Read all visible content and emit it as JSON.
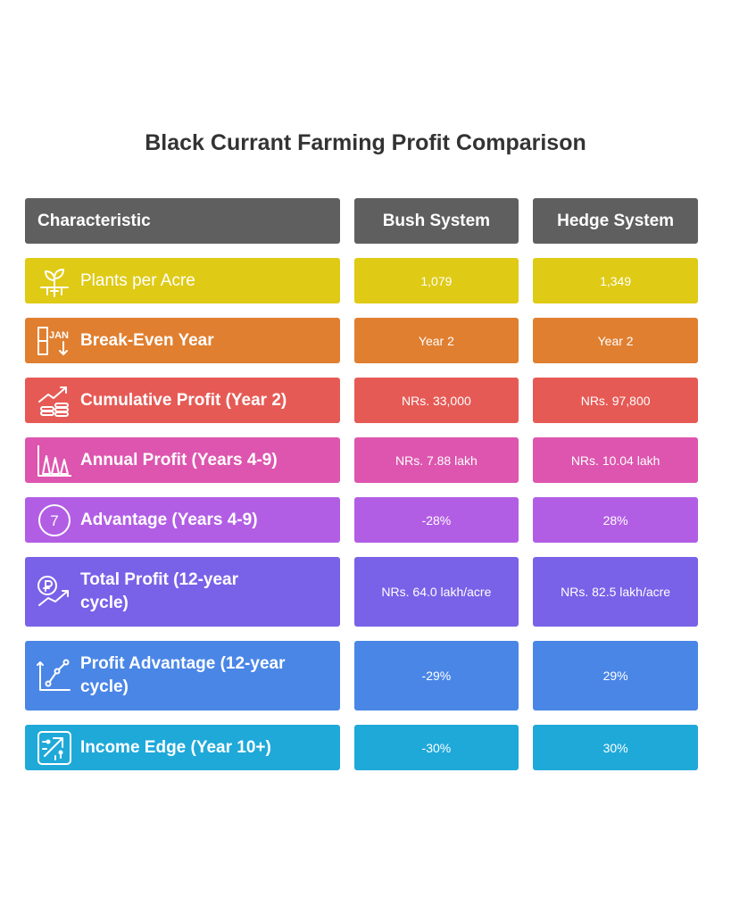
{
  "title": "Black Currant Farming Profit Comparison",
  "headers": {
    "characteristic": "Characteristic",
    "bush": "Bush System",
    "hedge": "Hedge System"
  },
  "rows": [
    {
      "label": "Plants per Acre",
      "bush": "1,079",
      "hedge": "1,349",
      "icon": "sprout-icon",
      "color": "#dfca16"
    },
    {
      "label": "Break-Even Year",
      "bush": "Year 2",
      "hedge": "Year 2",
      "icon": "calendar-jan-icon",
      "color": "#e07f30",
      "icon_text": "JAN"
    },
    {
      "label": "Cumulative Profit (Year 2)",
      "bush": "NRs. 33,000",
      "hedge": "NRs. 97,800",
      "icon": "coins-growth-icon",
      "color": "#e65a55"
    },
    {
      "label": "Annual Profit (Years 4-9)",
      "bush": "NRs. 7.88 lakh",
      "hedge": "NRs. 10.04 lakh",
      "icon": "trees-icon",
      "color": "#dd55ae"
    },
    {
      "label": "Advantage (Years 4-9)",
      "bush": "-28%",
      "hedge": "28%",
      "icon": "number-seven-icon",
      "color": "#b25ee4",
      "icon_text": "7"
    },
    {
      "label": "Total Profit (12-year cycle)",
      "bush": "NRs. 64.0 lakh/acre",
      "hedge": "NRs. 82.5 lakh/acre",
      "icon": "currency-growth-icon",
      "color": "#7962e8"
    },
    {
      "label": "Profit Advantage (12-year cycle)",
      "bush": "-29%",
      "hedge": "29%",
      "icon": "line-chart-icon",
      "color": "#4a86e6"
    },
    {
      "label": "Income Edge (Year 10+)",
      "bush": "-30%",
      "hedge": "30%",
      "icon": "circuit-arrow-icon",
      "color": "#1fa9d9"
    }
  ]
}
